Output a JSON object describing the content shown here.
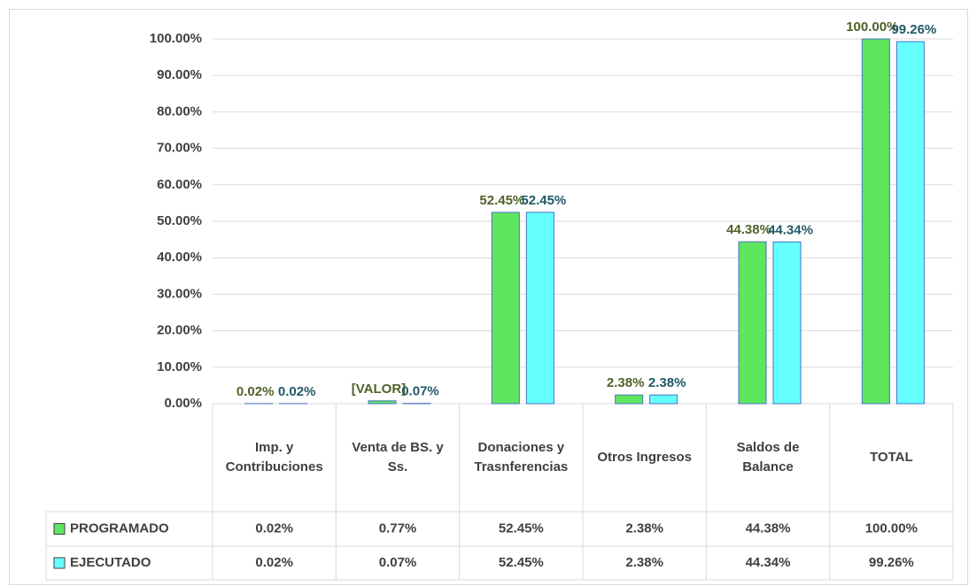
{
  "chart_data": {
    "type": "bar",
    "categories": [
      "Imp. y Contribuciones",
      "Venta de BS. y Ss.",
      "Donaciones y Trasnferencias",
      "Otros Ingresos",
      "Saldos de Balance",
      "TOTAL"
    ],
    "series": [
      {
        "name": "PROGRAMADO",
        "color": "#5ee65e",
        "label_color": "#4f6228",
        "values": [
          0.02,
          0.77,
          52.45,
          2.38,
          44.38,
          100
        ],
        "value_labels": [
          "0.02%",
          "[VALOR]",
          "52.45%",
          "2.38%",
          "44.38%",
          "100.00%"
        ],
        "table_labels": [
          "0.02%",
          "0.77%",
          "52.45%",
          "2.38%",
          "44.38%",
          "100.00%"
        ]
      },
      {
        "name": "EJECUTADO",
        "color": "#66ffff",
        "label_color": "#215967",
        "values": [
          0.02,
          0.07,
          52.45,
          2.38,
          44.34,
          99.26
        ],
        "value_labels": [
          "0.02%",
          "0.07%",
          "52.45%",
          "2.38%",
          "44.34%",
          "99.26%"
        ],
        "table_labels": [
          "0.02%",
          "0.07%",
          "52.45%",
          "2.38%",
          "44.34%",
          "99.26%"
        ]
      }
    ],
    "ylim": [
      0,
      100
    ],
    "yticks": [
      {
        "value": 0,
        "label": "0.00%"
      },
      {
        "value": 10,
        "label": "10.00%"
      },
      {
        "value": 20,
        "label": "20.00%"
      },
      {
        "value": 30,
        "label": "30.00%"
      },
      {
        "value": 40,
        "label": "40.00%"
      },
      {
        "value": 50,
        "label": "50.00%"
      },
      {
        "value": 60,
        "label": "60.00%"
      },
      {
        "value": 70,
        "label": "70.00%"
      },
      {
        "value": 80,
        "label": "80.00%"
      },
      {
        "value": 90,
        "label": "90.00%"
      },
      {
        "value": 100,
        "label": "100.00%"
      }
    ],
    "grid": true
  }
}
